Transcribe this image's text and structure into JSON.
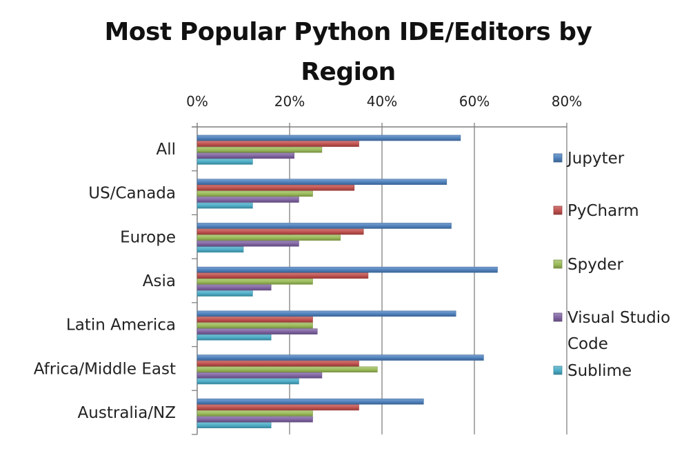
{
  "chart_data": {
    "type": "bar",
    "orientation": "horizontal",
    "title": "Most Popular Python IDE/Editors by Region",
    "xlabel": "",
    "ylabel": "",
    "xlim": [
      0,
      80
    ],
    "tick_values": [
      0,
      20,
      40,
      60,
      80
    ],
    "tick_labels": [
      "0%",
      "20%",
      "40%",
      "60%",
      "80%"
    ],
    "axis_position": "top",
    "grid": true,
    "legend_position": "right",
    "categories": [
      "All",
      "US/Canada",
      "Europe",
      "Asia",
      "Latin America",
      "Africa/Middle East",
      "Australia/NZ"
    ],
    "series": [
      {
        "name": "Jupyter",
        "color": "#4f81bd",
        "values": [
          57,
          54,
          55,
          65,
          56,
          62,
          49
        ]
      },
      {
        "name": "PyCharm",
        "color": "#c0504d",
        "values": [
          35,
          34,
          36,
          37,
          25,
          35,
          35
        ]
      },
      {
        "name": "Spyder",
        "color": "#9bbb59",
        "values": [
          27,
          25,
          31,
          25,
          25,
          39,
          25
        ]
      },
      {
        "name": "Visual Studio Code",
        "color": "#8064a2",
        "values": [
          21,
          22,
          22,
          16,
          26,
          27,
          25
        ]
      },
      {
        "name": "Sublime",
        "color": "#4bacc6",
        "values": [
          12,
          12,
          10,
          12,
          16,
          22,
          16
        ]
      }
    ],
    "legend_lines": [
      [
        "Jupyter"
      ],
      [
        "PyCharm"
      ],
      [
        "Spyder"
      ],
      [
        "Visual Studio",
        "Code"
      ],
      [
        "Sublime"
      ]
    ]
  }
}
